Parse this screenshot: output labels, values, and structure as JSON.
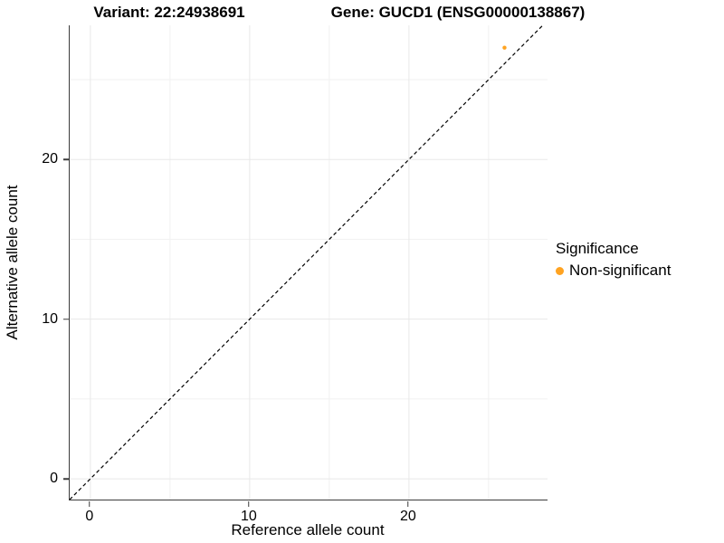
{
  "header": {
    "variant_title": "Variant: 22:24938691",
    "gene_title": "Gene: GUCD1 (ENSG00000138867)"
  },
  "legend": {
    "title": "Significance",
    "items": [
      {
        "label": "Non-significant",
        "color": "#FFA321"
      }
    ]
  },
  "chart_data": {
    "type": "scatter",
    "title": "",
    "xlabel": "Reference allele count",
    "ylabel": "Alternative allele count",
    "xlim": [
      -1.3,
      28.7
    ],
    "ylim": [
      -1.3,
      28.4
    ],
    "x_ticks": [
      0,
      10,
      20
    ],
    "y_ticks": [
      0,
      10,
      20
    ],
    "x_minor_ticks": [
      5,
      15,
      25
    ],
    "y_minor_ticks": [
      5,
      15,
      25
    ],
    "grid": true,
    "grid_major_color": "#e8e8e8",
    "grid_minor_color": "#f1f1f1",
    "axis_color": "#3c3c3c",
    "abline": {
      "slope": 1,
      "intercept": 0,
      "style": "dashed",
      "color": "#000000"
    },
    "series": [
      {
        "name": "Non-significant",
        "color": "#FFA321",
        "point_radius": 2.2,
        "points": [
          {
            "x": 26,
            "y": 27
          }
        ]
      }
    ],
    "legend_position": "right"
  }
}
